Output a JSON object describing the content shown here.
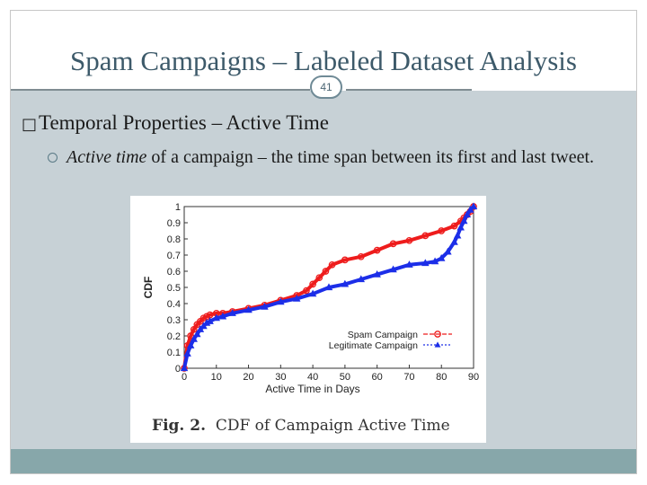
{
  "slide": {
    "title": "Spam Campaigns – Labeled Dataset Analysis",
    "number": "41",
    "heading_glyph": "□",
    "heading": "Temporal Properties – Active Time",
    "bullet_italic": "Active time",
    "bullet_text": " of a campaign – the time span between its first and last tweet.",
    "figure_label": "Fig. 2.",
    "figure_caption": "CDF of Campaign Active Time"
  },
  "colors": {
    "spam": "#ee1c1c",
    "legit": "#1c2ee8",
    "title": "#3d5a6a",
    "content_bg": "#c7d1d6",
    "footer_bg": "#87a7aa"
  },
  "chart_data": {
    "type": "line",
    "title": "",
    "xlabel": "Active Time in Days",
    "ylabel": "CDF",
    "xlim": [
      0,
      90
    ],
    "ylim": [
      0,
      1
    ],
    "xticks": [
      0,
      10,
      20,
      30,
      40,
      50,
      60,
      70,
      80,
      90
    ],
    "yticks": [
      0,
      0.1,
      0.2,
      0.3,
      0.4,
      0.5,
      0.6,
      0.7,
      0.8,
      0.9,
      1
    ],
    "legend_position": "bottom-right",
    "series": [
      {
        "name": "Spam Campaign",
        "marker": "circle",
        "x": [
          0,
          1,
          2,
          3,
          4,
          5,
          6,
          7,
          8,
          10,
          12,
          15,
          20,
          25,
          30,
          35,
          38,
          40,
          42,
          44,
          46,
          50,
          55,
          60,
          65,
          70,
          75,
          80,
          84,
          86,
          87,
          88,
          89,
          90
        ],
        "values": [
          0.0,
          0.14,
          0.2,
          0.24,
          0.27,
          0.29,
          0.31,
          0.32,
          0.33,
          0.34,
          0.34,
          0.35,
          0.37,
          0.39,
          0.42,
          0.45,
          0.48,
          0.52,
          0.56,
          0.6,
          0.64,
          0.67,
          0.69,
          0.73,
          0.77,
          0.79,
          0.82,
          0.85,
          0.88,
          0.91,
          0.93,
          0.95,
          0.97,
          1.0
        ]
      },
      {
        "name": "Legitimate Campaign",
        "marker": "triangle",
        "x": [
          0,
          1,
          2,
          3,
          4,
          5,
          6,
          7,
          8,
          10,
          12,
          15,
          20,
          25,
          30,
          35,
          40,
          45,
          50,
          55,
          60,
          65,
          70,
          75,
          78,
          80,
          82,
          84,
          85,
          86,
          87,
          88,
          89,
          90
        ],
        "values": [
          0.0,
          0.09,
          0.14,
          0.18,
          0.21,
          0.24,
          0.26,
          0.28,
          0.29,
          0.31,
          0.32,
          0.34,
          0.36,
          0.38,
          0.41,
          0.43,
          0.46,
          0.5,
          0.52,
          0.55,
          0.58,
          0.61,
          0.64,
          0.65,
          0.66,
          0.68,
          0.72,
          0.78,
          0.82,
          0.87,
          0.91,
          0.95,
          0.98,
          1.0
        ]
      }
    ]
  }
}
